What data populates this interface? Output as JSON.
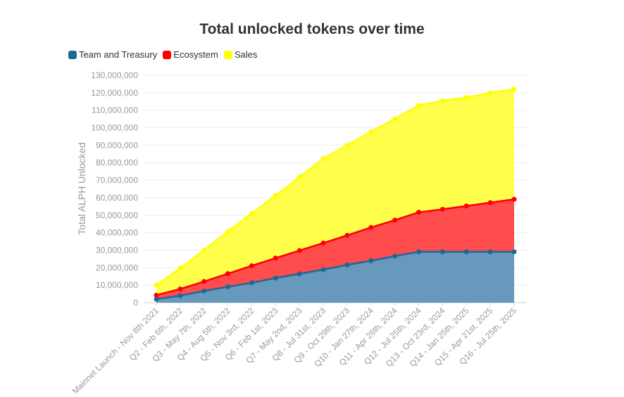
{
  "chart_data": {
    "type": "area",
    "stacked": true,
    "title": "Total unlocked tokens over time",
    "xlabel": "",
    "ylabel": "Total ALPH Unlocked",
    "ylim": [
      0,
      130000000
    ],
    "yticks": [
      "0",
      "10,000,000",
      "20,000,000",
      "30,000,000",
      "40,000,000",
      "50,000,000",
      "60,000,000",
      "70,000,000",
      "80,000,000",
      "90,000,000",
      "100,000,000",
      "110,000,000",
      "120,000,000",
      "130,000,000"
    ],
    "grid": true,
    "legend_position": "top-left",
    "categories": [
      "Mainnet Launch - Nov 8th 2021",
      "Q2 - Feb 6th, 2022",
      "Q3 - May 7th, 2022",
      "Q4 - Aug 5th, 2022",
      "Q5 - Nov 3rd, 2022",
      "Q6 - Feb 1st, 2023",
      "Q7 - May 2nd, 2023",
      "Q8 - Jul 31st, 2023",
      "Q9 - Oct 29th, 2023",
      "Q10 - Jan 27th, 2024",
      "Q11 - Apr 26th, 2024",
      "Q12 - Jul 25th, 2024",
      "Q13 - Oct 23rd, 2024",
      "Q14 - Jan 25th, 2025",
      "Q15 - Apr 21st, 2025",
      "Q16 - Jul 25th, 2025"
    ],
    "series": [
      {
        "name": "Team and Treasury",
        "line": "#1f6896",
        "fill": "#6699bb",
        "values": [
          2000000,
          4000000,
          6700000,
          9100000,
          11400000,
          14100000,
          16500000,
          18900000,
          21600000,
          24000000,
          26600000,
          29100000,
          29100000,
          29100000,
          29100000,
          29100000
        ]
      },
      {
        "name": "Ecosystem",
        "line": "#ff0000",
        "fill": "#ff4c4c",
        "values": [
          2300000,
          3800000,
          5400000,
          7500000,
          9700000,
          11400000,
          13300000,
          15200000,
          16900000,
          19000000,
          20600000,
          22600000,
          24300000,
          26200000,
          28100000,
          30000000
        ]
      },
      {
        "name": "Sales",
        "line": "#ffff00",
        "fill": "#ffff4c",
        "values": [
          5700000,
          11900000,
          17900000,
          24100000,
          29900000,
          35800000,
          42000000,
          48300000,
          51500000,
          54700000,
          57900000,
          61100000,
          62000000,
          62100000,
          62700000,
          63000000
        ]
      }
    ]
  }
}
